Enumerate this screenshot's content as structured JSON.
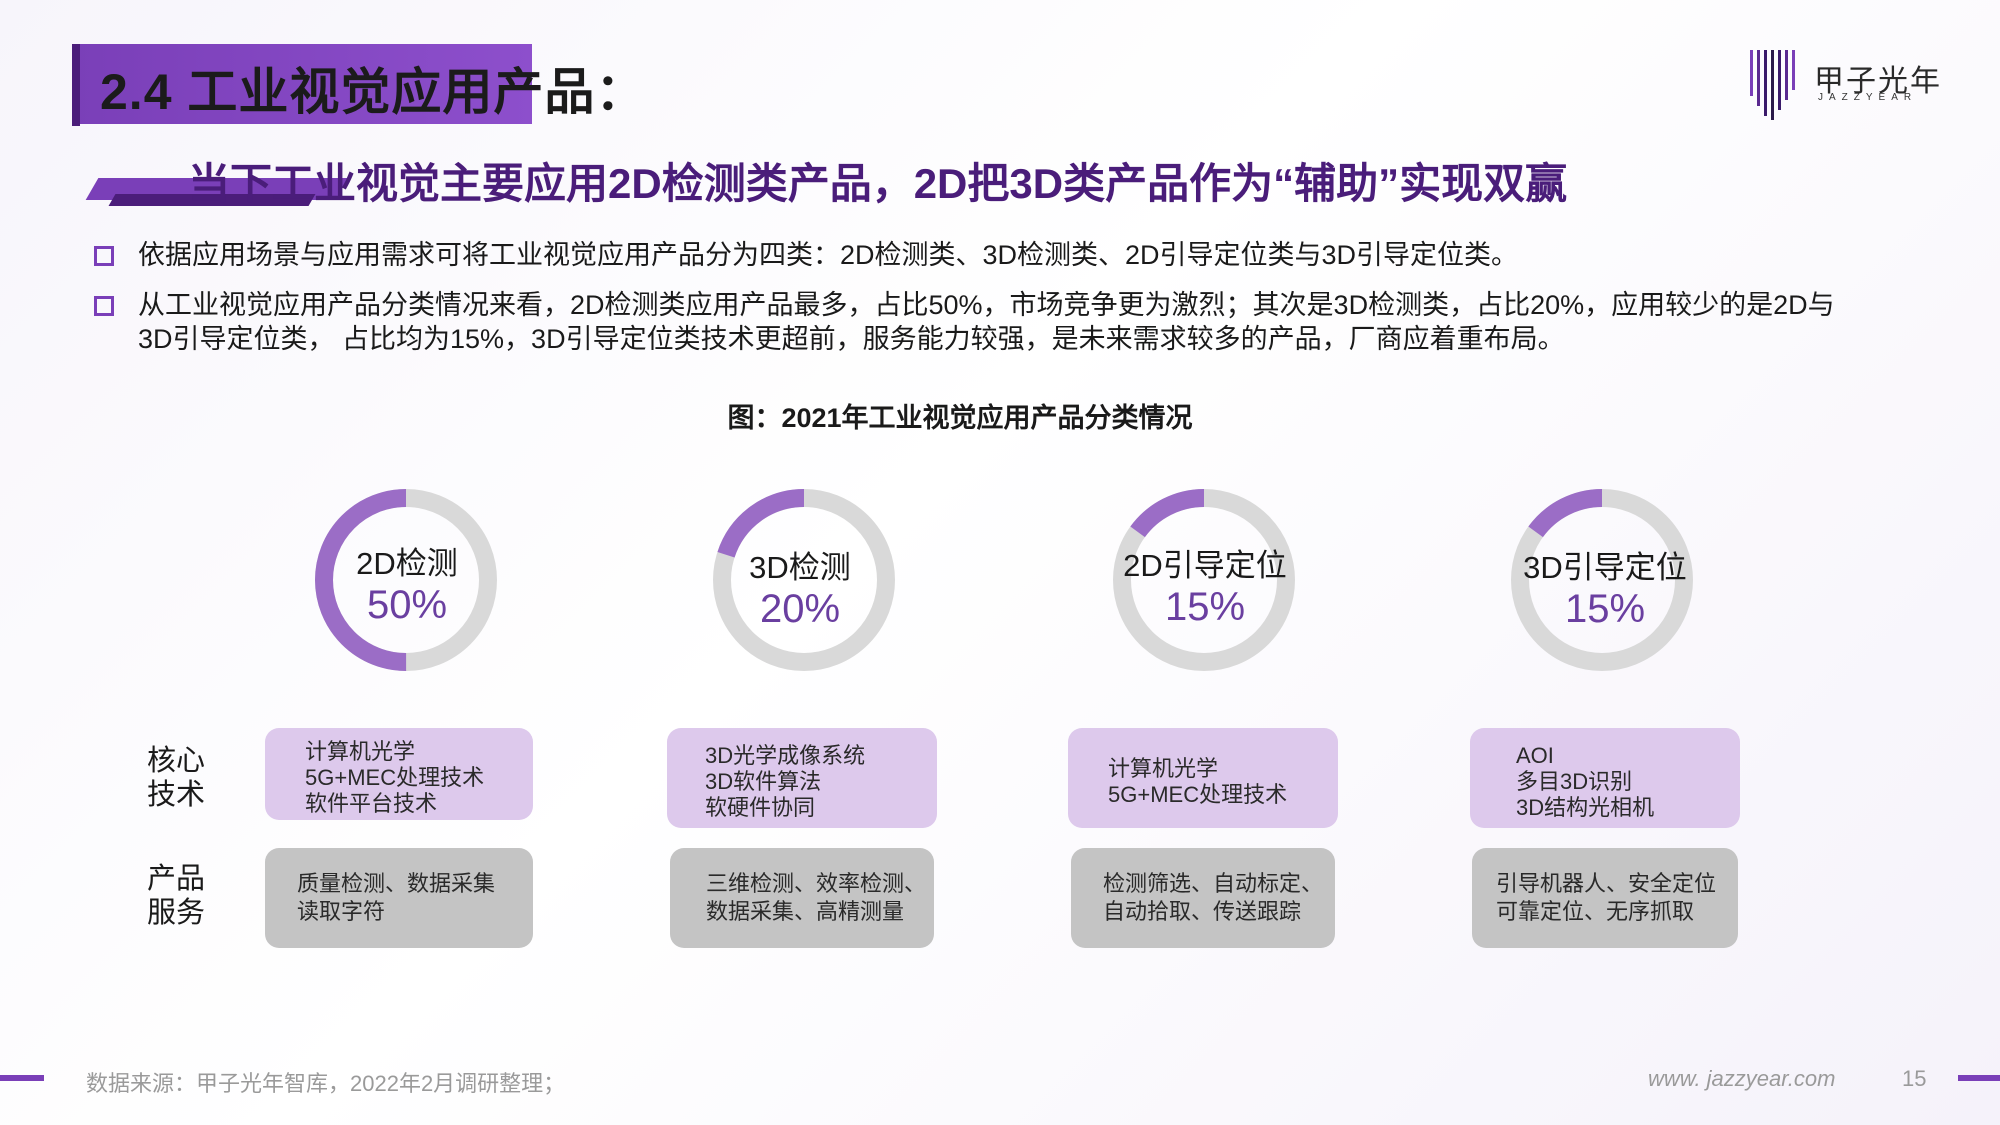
{
  "title": "2.4 工业视觉应用产品：",
  "logo": {
    "cn": "甲子光年",
    "en": "JAZZYEAR"
  },
  "subtitle": "当下工业视觉主要应用2D检测类产品，2D把3D类产品作为“辅助”实现双赢",
  "bullets": [
    {
      "line1": "依据应用场景与应用需求可将工业视觉应用产品分为四类：2D检测类、3D检测类、2D引导定位类与3D引导定位类。"
    },
    {
      "line1": "从工业视觉应用产品分类情况来看，2D检测类应用产品最多，占比50%，市场竞争更为激烈；其次是3D检测类，占比20%，应用较少的是2D与",
      "line2": "3D引导定位类， 占比均为15%，3D引导定位类技术更超前，服务能力较强，是未来需求较多的产品，厂商应着重布局。"
    }
  ],
  "chart_title": "图：2021年工业视觉应用产品分类情况",
  "row_labels": {
    "tech_1": "核心",
    "tech_2": "技术",
    "svc_1": "产品",
    "svc_2": "服务"
  },
  "chart_data": {
    "type": "pie",
    "categories": [
      "2D检测",
      "3D检测",
      "2D引导定位",
      "3D引导定位"
    ],
    "values": [
      50,
      20,
      15,
      15
    ],
    "labels": [
      "50%",
      "20%",
      "15%",
      "15%"
    ]
  },
  "products": [
    {
      "tech": [
        "计算机光学",
        "5G+MEC处理技术",
        "软件平台技术"
      ],
      "svc": [
        "质量检测、数据采集",
        "读取字符"
      ]
    },
    {
      "tech": [
        "3D光学成像系统",
        "3D软件算法",
        "软硬件协同"
      ],
      "svc": [
        "三维检测、效率检测、",
        "数据采集、高精测量"
      ]
    },
    {
      "tech": [
        "计算机光学",
        "5G+MEC处理技术"
      ],
      "svc": [
        "检测筛选、自动标定、",
        "自动拾取、传送跟踪"
      ]
    },
    {
      "tech": [
        "AOI",
        "多目3D识别",
        "3D结构光相机"
      ],
      "svc": [
        "引导机器人、安全定位",
        "可靠定位、无序抓取"
      ]
    }
  ],
  "colors": {
    "accent": "#7a3fb8",
    "donut_fill": "#9b6dc6",
    "donut_track": "#d9d9d9"
  },
  "footer": {
    "source": "数据来源：甲子光年智库，2022年2月调研整理；",
    "site": "www. jazzyear.com",
    "page": "15"
  }
}
